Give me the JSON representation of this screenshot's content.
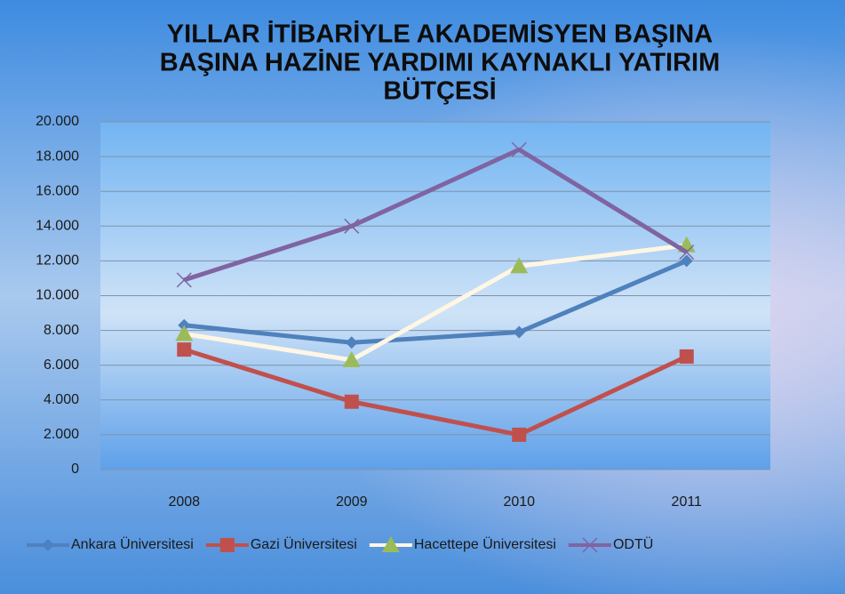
{
  "chart_data": {
    "type": "line",
    "title": [
      "YILLAR İTİBARİYLE AKADEMİSYEN BAŞINA",
      "BAŞINA  HAZİNE YARDIMI KAYNAKLI YATIRIM",
      "BÜTÇESİ"
    ],
    "categories": [
      "2008",
      "2009",
      "2010",
      "2011"
    ],
    "series": [
      {
        "name": "Ankara Üniversitesi",
        "color": "#4f81bd",
        "marker": "diamond",
        "marker_color": "#4f81bd",
        "values": [
          8300,
          7300,
          7900,
          12000
        ]
      },
      {
        "name": "Gazi Üniversitesi",
        "color": "#c0504d",
        "marker": "square",
        "marker_color": "#c0504d",
        "values": [
          6900,
          3900,
          2000,
          6500
        ]
      },
      {
        "name": "Hacettepe Üniversitesi",
        "color": "#fff6e4",
        "marker": "triangle",
        "marker_color": "#9bbb59",
        "values": [
          7800,
          6300,
          11700,
          12900
        ]
      },
      {
        "name": "ODTÜ",
        "color": "#8064a2",
        "marker": "x",
        "marker_color": "#8064a2",
        "values": [
          10900,
          14000,
          18400,
          12500
        ]
      }
    ],
    "ylim": [
      0,
      20000
    ],
    "yticks": [
      0,
      {
        "value": 2000,
        "label": "2.000"
      },
      {
        "value": 4000,
        "label": "4.000"
      },
      {
        "value": 6000,
        "label": "6.000"
      },
      {
        "value": 8000,
        "label": "8.000"
      },
      {
        "value": 10000,
        "label": "10.000"
      },
      {
        "value": 12000,
        "label": "12.000"
      },
      {
        "value": 14000,
        "label": "14.000"
      },
      {
        "value": 16000,
        "label": "16.000"
      },
      {
        "value": 18000,
        "label": "18.000"
      },
      {
        "value": 20000,
        "label": "20.000"
      }
    ],
    "grid": true,
    "legend": "bottom"
  }
}
